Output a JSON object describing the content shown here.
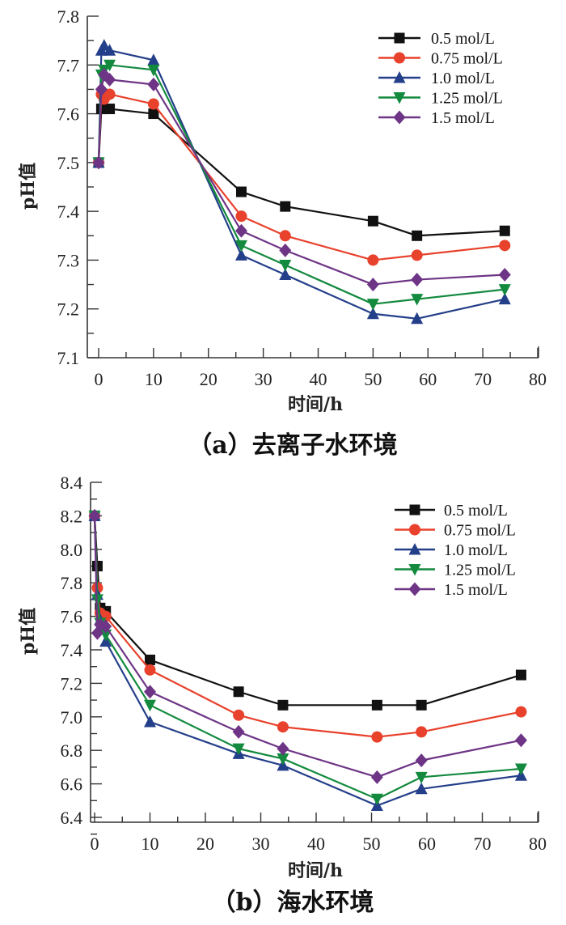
{
  "chart_data": [
    {
      "type": "line",
      "id": "a",
      "title": "（a）去离子水环境",
      "xlabel": "时间/h",
      "ylabel": "pH值",
      "xlim": [
        0,
        80
      ],
      "ylim": [
        7.1,
        7.8
      ],
      "xticks": [
        0,
        10,
        20,
        30,
        40,
        50,
        60,
        70,
        80
      ],
      "xtick_labels": [
        "0",
        "10",
        "20",
        "30",
        "40",
        "50",
        "60",
        "70",
        "80"
      ],
      "yticks": [
        7.1,
        7.2,
        7.3,
        7.4,
        7.5,
        7.6,
        7.7,
        7.8
      ],
      "ytick_labels": [
        "7.1",
        "7.2",
        "7.3",
        "7.4",
        "7.5",
        "7.6",
        "7.7",
        "7.8"
      ],
      "grid": false,
      "legend_position": "top-right",
      "x": [
        0,
        0.5,
        1,
        2,
        10,
        26,
        34,
        50,
        58,
        74
      ],
      "series": [
        {
          "name": "0.5 mol/L",
          "color": "#111111",
          "marker": "square",
          "values": [
            7.5,
            7.61,
            7.61,
            7.61,
            7.6,
            7.44,
            7.41,
            7.38,
            7.35,
            7.36
          ]
        },
        {
          "name": "0.75 mol/L",
          "color": "#e8412c",
          "marker": "circle",
          "values": [
            7.5,
            7.64,
            7.63,
            7.64,
            7.62,
            7.39,
            7.35,
            7.3,
            7.31,
            7.33
          ]
        },
        {
          "name": "1.0 mol/L",
          "color": "#243f8a",
          "marker": "triangle-up",
          "values": [
            7.5,
            7.73,
            7.74,
            7.73,
            7.71,
            7.31,
            7.27,
            7.19,
            7.18,
            7.22
          ]
        },
        {
          "name": "1.25 mol/L",
          "color": "#138a3e",
          "marker": "triangle-down",
          "values": [
            7.5,
            7.68,
            7.69,
            7.7,
            7.69,
            7.33,
            7.29,
            7.21,
            7.22,
            7.24
          ]
        },
        {
          "name": "1.5 mol/L",
          "color": "#6e3586",
          "marker": "diamond",
          "values": [
            7.5,
            7.65,
            7.68,
            7.67,
            7.66,
            7.36,
            7.32,
            7.25,
            7.26,
            7.27
          ]
        }
      ]
    },
    {
      "type": "line",
      "id": "b",
      "title": "（b）海水环境",
      "xlabel": "时间/h",
      "ylabel": "pH值",
      "xlim": [
        0,
        80
      ],
      "ylim": [
        6.3,
        8.4
      ],
      "xticks": [
        0,
        10,
        20,
        30,
        40,
        50,
        60,
        70,
        80
      ],
      "xtick_labels": [
        "0",
        "10",
        "20",
        "30",
        "40",
        "50",
        "60",
        "70",
        "80"
      ],
      "yticks": [
        6.4,
        6.6,
        6.8,
        7.0,
        7.2,
        7.4,
        7.6,
        7.8,
        8.0,
        8.2,
        8.4
      ],
      "ytick_labels": [
        "6.4",
        "6.6",
        "6.8",
        "7.0",
        "7.2",
        "7.4",
        "7.6",
        "7.8",
        "8.0",
        "8.2",
        "8.4"
      ],
      "grid": false,
      "legend_position": "top-right",
      "x": [
        0,
        0.5,
        1,
        2,
        10,
        26,
        34,
        51,
        59,
        77
      ],
      "series": [
        {
          "name": "0.5 mol/L",
          "color": "#111111",
          "marker": "square",
          "values": [
            8.2,
            7.9,
            7.65,
            7.63,
            7.34,
            7.15,
            7.07,
            7.07,
            7.07,
            7.25
          ]
        },
        {
          "name": "0.75 mol/L",
          "color": "#e8412c",
          "marker": "circle",
          "values": [
            8.2,
            7.77,
            7.62,
            7.6,
            7.28,
            7.01,
            6.94,
            6.88,
            6.91,
            7.03
          ]
        },
        {
          "name": "1.0 mol/L",
          "color": "#243f8a",
          "marker": "triangle-up",
          "values": [
            8.2,
            7.73,
            7.58,
            7.45,
            6.97,
            6.78,
            6.71,
            6.47,
            6.57,
            6.65
          ]
        },
        {
          "name": "1.25 mol/L",
          "color": "#138a3e",
          "marker": "triangle-down",
          "values": [
            8.2,
            7.7,
            7.56,
            7.49,
            7.07,
            6.81,
            6.75,
            6.51,
            6.64,
            6.69
          ]
        },
        {
          "name": "1.5 mol/L",
          "color": "#6e3586",
          "marker": "diamond",
          "values": [
            8.2,
            7.5,
            7.55,
            7.54,
            7.15,
            6.91,
            6.81,
            6.64,
            6.74,
            6.86
          ]
        }
      ]
    }
  ]
}
